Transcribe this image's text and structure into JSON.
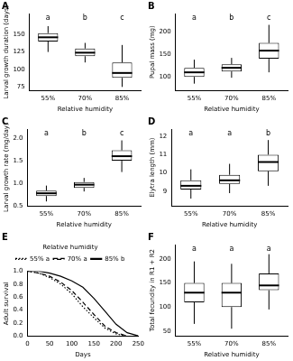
{
  "chart_data": [
    {
      "type": "box",
      "title": "A",
      "x_label": "Relative humidity",
      "y_label": "Larval growth duration (days)",
      "categories": [
        "55%",
        "70%",
        "85%"
      ],
      "annotations": [
        "a",
        "b",
        "c"
      ],
      "color": "#000000",
      "box_stats": {
        "min": [
          125,
          110,
          75
        ],
        "q1": [
          140,
          119,
          88
        ],
        "median": [
          146,
          124,
          95
        ],
        "q3": [
          152,
          130,
          110
        ],
        "max": [
          162,
          138,
          135
        ]
      },
      "ylim": [
        70,
        180
      ],
      "yticks": [
        75,
        100,
        125,
        150
      ],
      "grid": false
    },
    {
      "type": "box",
      "title": "B",
      "x_label": "Relative humidity",
      "y_label": "Pupal mass (mg)",
      "categories": [
        "55%",
        "70%",
        "85%"
      ],
      "annotations": [
        "a",
        "b",
        "c"
      ],
      "color": "#000000",
      "box_stats": {
        "min": [
          85,
          98,
          110
        ],
        "q1": [
          100,
          112,
          140
        ],
        "median": [
          110,
          120,
          158
        ],
        "q3": [
          120,
          128,
          175
        ],
        "max": [
          138,
          142,
          215
        ]
      },
      "ylim": [
        70,
        240
      ],
      "yticks": [
        100,
        150,
        200
      ],
      "grid": false
    },
    {
      "type": "box",
      "title": "C",
      "x_label": "Relative humidity",
      "y_label": "Larval growth rate (mg/day)",
      "categories": [
        "55%",
        "70%",
        "85%"
      ],
      "annotations": [
        "a",
        "b",
        "c"
      ],
      "color": "#000000",
      "box_stats": {
        "min": [
          0.6,
          0.82,
          1.25
        ],
        "q1": [
          0.72,
          0.9,
          1.5
        ],
        "median": [
          0.78,
          0.97,
          1.6
        ],
        "q3": [
          0.84,
          1.03,
          1.73
        ],
        "max": [
          0.95,
          1.12,
          1.95
        ]
      },
      "ylim": [
        0.5,
        2.2
      ],
      "yticks": [
        0.5,
        {
          "value": 1,
          "label": "1.0"
        },
        1.5,
        {
          "value": 2,
          "label": "2.0"
        }
      ],
      "grid": false
    },
    {
      "type": "box",
      "title": "D",
      "x_label": "Relative humidity",
      "y_label": "Elytra length (mm)",
      "categories": [
        "55%",
        "70%",
        "85%"
      ],
      "annotations": [
        "a",
        "a",
        "b"
      ],
      "color": "#000000",
      "box_stats": {
        "min": [
          8.6,
          8.9,
          9.3
        ],
        "q1": [
          9.1,
          9.4,
          10.1
        ],
        "median": [
          9.3,
          9.6,
          10.6
        ],
        "q3": [
          9.6,
          9.9,
          11.0
        ],
        "max": [
          10.2,
          10.5,
          11.8
        ]
      },
      "ylim": [
        8.2,
        12.4
      ],
      "yticks": [
        9,
        10,
        11,
        12
      ],
      "grid": false
    },
    {
      "type": "line",
      "title": "E",
      "x_label": "Days",
      "y_label": "Adult survival",
      "legend": "top",
      "legend_title": "Relative humidity",
      "series": [
        {
          "name": "55% a",
          "color": "#000000",
          "line_style": "dotted",
          "x": [
            0,
            25,
            50,
            75,
            100,
            125,
            150,
            175,
            200,
            225
          ],
          "values": [
            1,
            0.97,
            0.9,
            0.8,
            0.65,
            0.45,
            0.28,
            0.12,
            0.03,
            0
          ]
        },
        {
          "name": "70% a",
          "color": "#000000",
          "line_style": "dashed",
          "x": [
            0,
            25,
            50,
            75,
            100,
            125,
            150,
            175,
            200,
            225
          ],
          "values": [
            1,
            0.97,
            0.92,
            0.83,
            0.7,
            0.52,
            0.33,
            0.15,
            0.05,
            0
          ]
        },
        {
          "name": "85% b",
          "color": "#000000",
          "line_style": "solid",
          "x": [
            0,
            25,
            50,
            75,
            100,
            125,
            150,
            175,
            200,
            225,
            250
          ],
          "values": [
            1,
            1,
            0.97,
            0.92,
            0.85,
            0.75,
            0.58,
            0.38,
            0.18,
            0.05,
            0
          ]
        }
      ],
      "xlim": [
        0,
        250
      ],
      "xticks": [
        0,
        50,
        100,
        150,
        200,
        250
      ],
      "ylim": [
        0,
        1
      ],
      "yticks": [
        {
          "value": 0,
          "label": "0.0"
        },
        0.2,
        0.4,
        0.6,
        0.8,
        {
          "value": 1,
          "label": "1.0"
        }
      ],
      "grid": false
    },
    {
      "type": "box",
      "title": "F",
      "x_label": "Relative humidity",
      "y_label": "Total fecundity in R1 + R2",
      "categories": [
        "55%",
        "70%",
        "85%"
      ],
      "annotations": [
        "a",
        "a",
        "a"
      ],
      "color": "#000000",
      "box_stats": {
        "min": [
          65,
          55,
          95
        ],
        "q1": [
          110,
          100,
          135
        ],
        "median": [
          130,
          130,
          145
        ],
        "q3": [
          150,
          150,
          170
        ],
        "max": [
          195,
          190,
          210
        ]
      },
      "ylim": [
        40,
        230
      ],
      "yticks": [
        50,
        100,
        150,
        200
      ],
      "grid": false
    }
  ]
}
